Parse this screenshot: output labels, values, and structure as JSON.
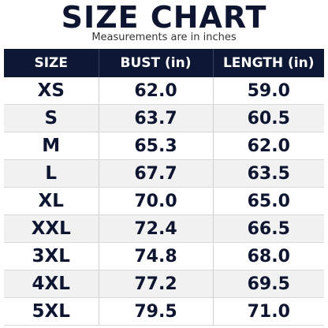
{
  "header": {
    "title": "SIZE CHART",
    "subtitle": "Measurements are in inches"
  },
  "table": {
    "columns": [
      "SIZE",
      "BUST (in)",
      "LENGTH (in)"
    ],
    "rows": [
      [
        "XS",
        "62.0",
        "59.0"
      ],
      [
        "S",
        "63.7",
        "60.5"
      ],
      [
        "M",
        "65.3",
        "62.0"
      ],
      [
        "L",
        "67.7",
        "63.5"
      ],
      [
        "XL",
        "70.0",
        "65.0"
      ],
      [
        "XXL",
        "72.4",
        "66.5"
      ],
      [
        "3XL",
        "74.8",
        "68.0"
      ],
      [
        "4XL",
        "77.2",
        "69.5"
      ],
      [
        "5XL",
        "79.5",
        "71.0"
      ]
    ]
  }
}
